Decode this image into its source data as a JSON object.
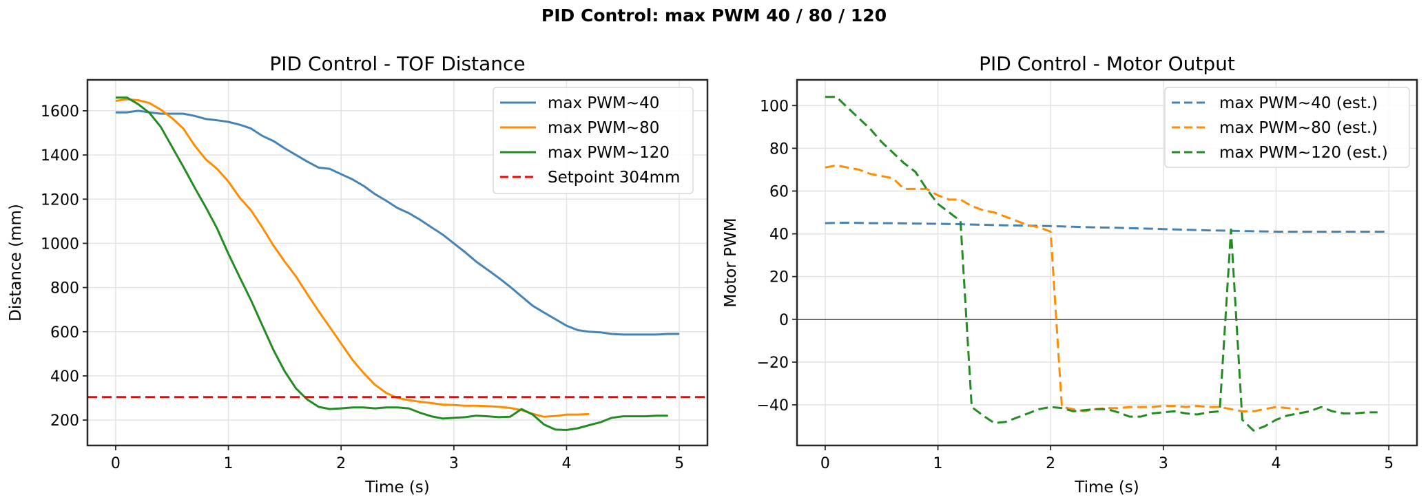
{
  "figure": {
    "suptitle": "PID Control: max PWM 40 / 80 / 120"
  },
  "chart_data": [
    {
      "type": "line",
      "title": "PID Control - TOF Distance",
      "xlabel": "Time (s)",
      "ylabel": "Distance (mm)",
      "xlim": [
        -0.25,
        5.25
      ],
      "ylim": [
        85,
        1740
      ],
      "xticks": [
        0,
        1,
        2,
        3,
        4,
        5
      ],
      "xtick_labels": [
        "0",
        "1",
        "2",
        "3",
        "4",
        "5"
      ],
      "yticks": [
        200,
        400,
        600,
        800,
        1000,
        1200,
        1400,
        1600
      ],
      "ytick_labels": [
        "200",
        "400",
        "600",
        "800",
        "1000",
        "1200",
        "1400",
        "1600"
      ],
      "grid": true,
      "legend_position": "top-right",
      "series": [
        {
          "name": "max PWM~40",
          "color": "#4682b4",
          "style": "solid",
          "x": [
            0,
            0.1,
            0.2,
            0.3,
            0.4,
            0.5,
            0.6,
            0.7,
            0.8,
            0.9,
            1.0,
            1.1,
            1.2,
            1.3,
            1.4,
            1.5,
            1.6,
            1.7,
            1.8,
            1.9,
            2.0,
            2.1,
            2.2,
            2.3,
            2.4,
            2.5,
            2.6,
            2.7,
            2.8,
            2.9,
            3.0,
            3.1,
            3.2,
            3.3,
            3.4,
            3.5,
            3.6,
            3.7,
            3.8,
            3.9,
            4.0,
            4.1,
            4.2,
            4.3,
            4.4,
            4.5,
            4.6,
            4.7,
            4.8,
            4.9,
            5.0
          ],
          "y": [
            1593,
            1593,
            1600,
            1593,
            1587,
            1587,
            1587,
            1577,
            1563,
            1557,
            1550,
            1537,
            1520,
            1487,
            1463,
            1430,
            1400,
            1370,
            1343,
            1337,
            1313,
            1290,
            1260,
            1223,
            1193,
            1160,
            1137,
            1107,
            1073,
            1040,
            1000,
            960,
            917,
            880,
            843,
            803,
            760,
            717,
            687,
            657,
            627,
            607,
            600,
            597,
            590,
            587,
            587,
            587,
            587,
            590,
            590
          ]
        },
        {
          "name": "max PWM~80",
          "color": "#ff8c00",
          "style": "solid",
          "x": [
            0,
            0.1,
            0.2,
            0.3,
            0.4,
            0.5,
            0.6,
            0.7,
            0.8,
            0.9,
            1.0,
            1.1,
            1.2,
            1.3,
            1.4,
            1.5,
            1.6,
            1.7,
            1.8,
            1.9,
            2.0,
            2.1,
            2.2,
            2.3,
            2.4,
            2.5,
            2.6,
            2.7,
            2.8,
            2.9,
            3.0,
            3.1,
            3.2,
            3.3,
            3.4,
            3.5,
            3.6,
            3.7,
            3.8,
            3.9,
            4.0,
            4.1,
            4.2
          ],
          "y": [
            1645,
            1652,
            1648,
            1635,
            1605,
            1567,
            1520,
            1443,
            1380,
            1337,
            1280,
            1207,
            1150,
            1073,
            990,
            917,
            850,
            770,
            693,
            620,
            547,
            473,
            413,
            360,
            323,
            300,
            290,
            283,
            277,
            270,
            268,
            265,
            265,
            263,
            260,
            255,
            245,
            228,
            215,
            218,
            225,
            225,
            227
          ]
        },
        {
          "name": "max PWM~120",
          "color": "#228b22",
          "style": "solid",
          "x": [
            0,
            0.1,
            0.2,
            0.3,
            0.4,
            0.5,
            0.6,
            0.7,
            0.8,
            0.9,
            1.0,
            1.1,
            1.2,
            1.3,
            1.4,
            1.5,
            1.6,
            1.7,
            1.8,
            1.9,
            2.0,
            2.1,
            2.2,
            2.3,
            2.4,
            2.5,
            2.6,
            2.7,
            2.8,
            2.9,
            3.0,
            3.1,
            3.2,
            3.3,
            3.4,
            3.5,
            3.6,
            3.7,
            3.8,
            3.9,
            4.0,
            4.1,
            4.2,
            4.3,
            4.4,
            4.5,
            4.6,
            4.7,
            4.8,
            4.9
          ],
          "y": [
            1660,
            1660,
            1630,
            1590,
            1527,
            1437,
            1347,
            1253,
            1163,
            1067,
            953,
            847,
            743,
            630,
            517,
            420,
            343,
            293,
            260,
            250,
            253,
            257,
            257,
            253,
            257,
            257,
            253,
            233,
            217,
            207,
            210,
            213,
            220,
            217,
            213,
            215,
            250,
            225,
            180,
            157,
            155,
            163,
            177,
            190,
            210,
            217,
            217,
            217,
            220,
            220
          ]
        },
        {
          "name": "Setpoint 304mm",
          "color": "#ff0000",
          "style": "dashed",
          "x": [
            -0.25,
            5.25
          ],
          "y": [
            304,
            304
          ]
        }
      ]
    },
    {
      "type": "line",
      "title": "PID Control - Motor Output",
      "xlabel": "Time (s)",
      "ylabel": "Motor PWM",
      "xlim": [
        -0.25,
        5.25
      ],
      "ylim": [
        -59,
        112
      ],
      "xticks": [
        0,
        1,
        2,
        3,
        4,
        5
      ],
      "xtick_labels": [
        "0",
        "1",
        "2",
        "3",
        "4",
        "5"
      ],
      "yticks": [
        -40,
        -20,
        0,
        20,
        40,
        60,
        80,
        100
      ],
      "ytick_labels": [
        "−40",
        "−20",
        "0",
        "20",
        "40",
        "60",
        "80",
        "100"
      ],
      "zero_line": true,
      "grid": true,
      "legend_position": "top-right",
      "series": [
        {
          "name": "max PWM~40 (est.)",
          "color": "#4682b4",
          "style": "dashed",
          "x": [
            0,
            0.2,
            0.4,
            0.6,
            0.8,
            1.0,
            1.2,
            1.4,
            1.6,
            1.8,
            2.0,
            2.2,
            2.4,
            2.6,
            2.8,
            3.0,
            3.2,
            3.4,
            3.6,
            3.8,
            4.0,
            4.2,
            4.4,
            4.6,
            4.8,
            5.0
          ],
          "y": [
            45,
            45.2,
            45,
            45,
            44.8,
            44.7,
            44.5,
            44.2,
            44.0,
            43.8,
            43.6,
            43.3,
            43.0,
            42.8,
            42.5,
            42.2,
            41.9,
            41.6,
            41.4,
            41.2,
            41.0,
            41.0,
            41.0,
            41.0,
            41.0,
            41.0
          ]
        },
        {
          "name": "max PWM~80 (est.)",
          "color": "#ff8c00",
          "style": "dashed",
          "x": [
            0,
            0.1,
            0.2,
            0.3,
            0.4,
            0.5,
            0.6,
            0.7,
            0.8,
            0.9,
            1.0,
            1.1,
            1.2,
            1.3,
            1.4,
            1.5,
            1.6,
            1.7,
            1.8,
            1.9,
            2.0,
            2.1,
            2.2,
            2.3,
            2.4,
            2.5,
            2.6,
            2.7,
            2.8,
            2.9,
            3.0,
            3.1,
            3.2,
            3.3,
            3.4,
            3.5,
            3.6,
            3.7,
            3.8,
            3.9,
            4.0,
            4.1,
            4.2
          ],
          "y": [
            71,
            72,
            71,
            70,
            68,
            67,
            66,
            61,
            61,
            61,
            58,
            56,
            56,
            53,
            51,
            50,
            48,
            46,
            44,
            43,
            41,
            -41,
            -42,
            -43,
            -42,
            -41.5,
            -41.5,
            -41,
            -41,
            -41,
            -40.5,
            -40.5,
            -41,
            -40.5,
            -41,
            -41,
            -42,
            -43,
            -43,
            -42,
            -41,
            -41.5,
            -42
          ]
        },
        {
          "name": "max PWM~120 (est.)",
          "color": "#228b22",
          "style": "dashed",
          "x": [
            0,
            0.1,
            0.2,
            0.3,
            0.4,
            0.5,
            0.6,
            0.7,
            0.8,
            0.9,
            1.0,
            1.1,
            1.2,
            1.3,
            1.4,
            1.5,
            1.6,
            1.7,
            1.8,
            1.9,
            2.0,
            2.1,
            2.2,
            2.3,
            2.4,
            2.5,
            2.6,
            2.7,
            2.8,
            2.9,
            3.0,
            3.1,
            3.2,
            3.3,
            3.4,
            3.5,
            3.6,
            3.7,
            3.8,
            3.9,
            4.0,
            4.1,
            4.2,
            4.3,
            4.4,
            4.5,
            4.6,
            4.7,
            4.8,
            4.9
          ],
          "y": [
            104,
            104,
            99,
            94,
            89,
            83,
            78,
            73,
            69,
            61,
            54,
            50,
            46,
            -41,
            -45,
            -48.5,
            -48,
            -46,
            -44,
            -42,
            -41,
            -41.5,
            -43,
            -42.5,
            -42,
            -42,
            -43.5,
            -45.5,
            -45.5,
            -44,
            -43.5,
            -43,
            -44,
            -44.5,
            -43.5,
            -43,
            42,
            -47,
            -52,
            -50,
            -47,
            -45,
            -44,
            -43,
            -41,
            -43,
            -44,
            -44,
            -43.5,
            -43.5
          ]
        }
      ]
    }
  ]
}
